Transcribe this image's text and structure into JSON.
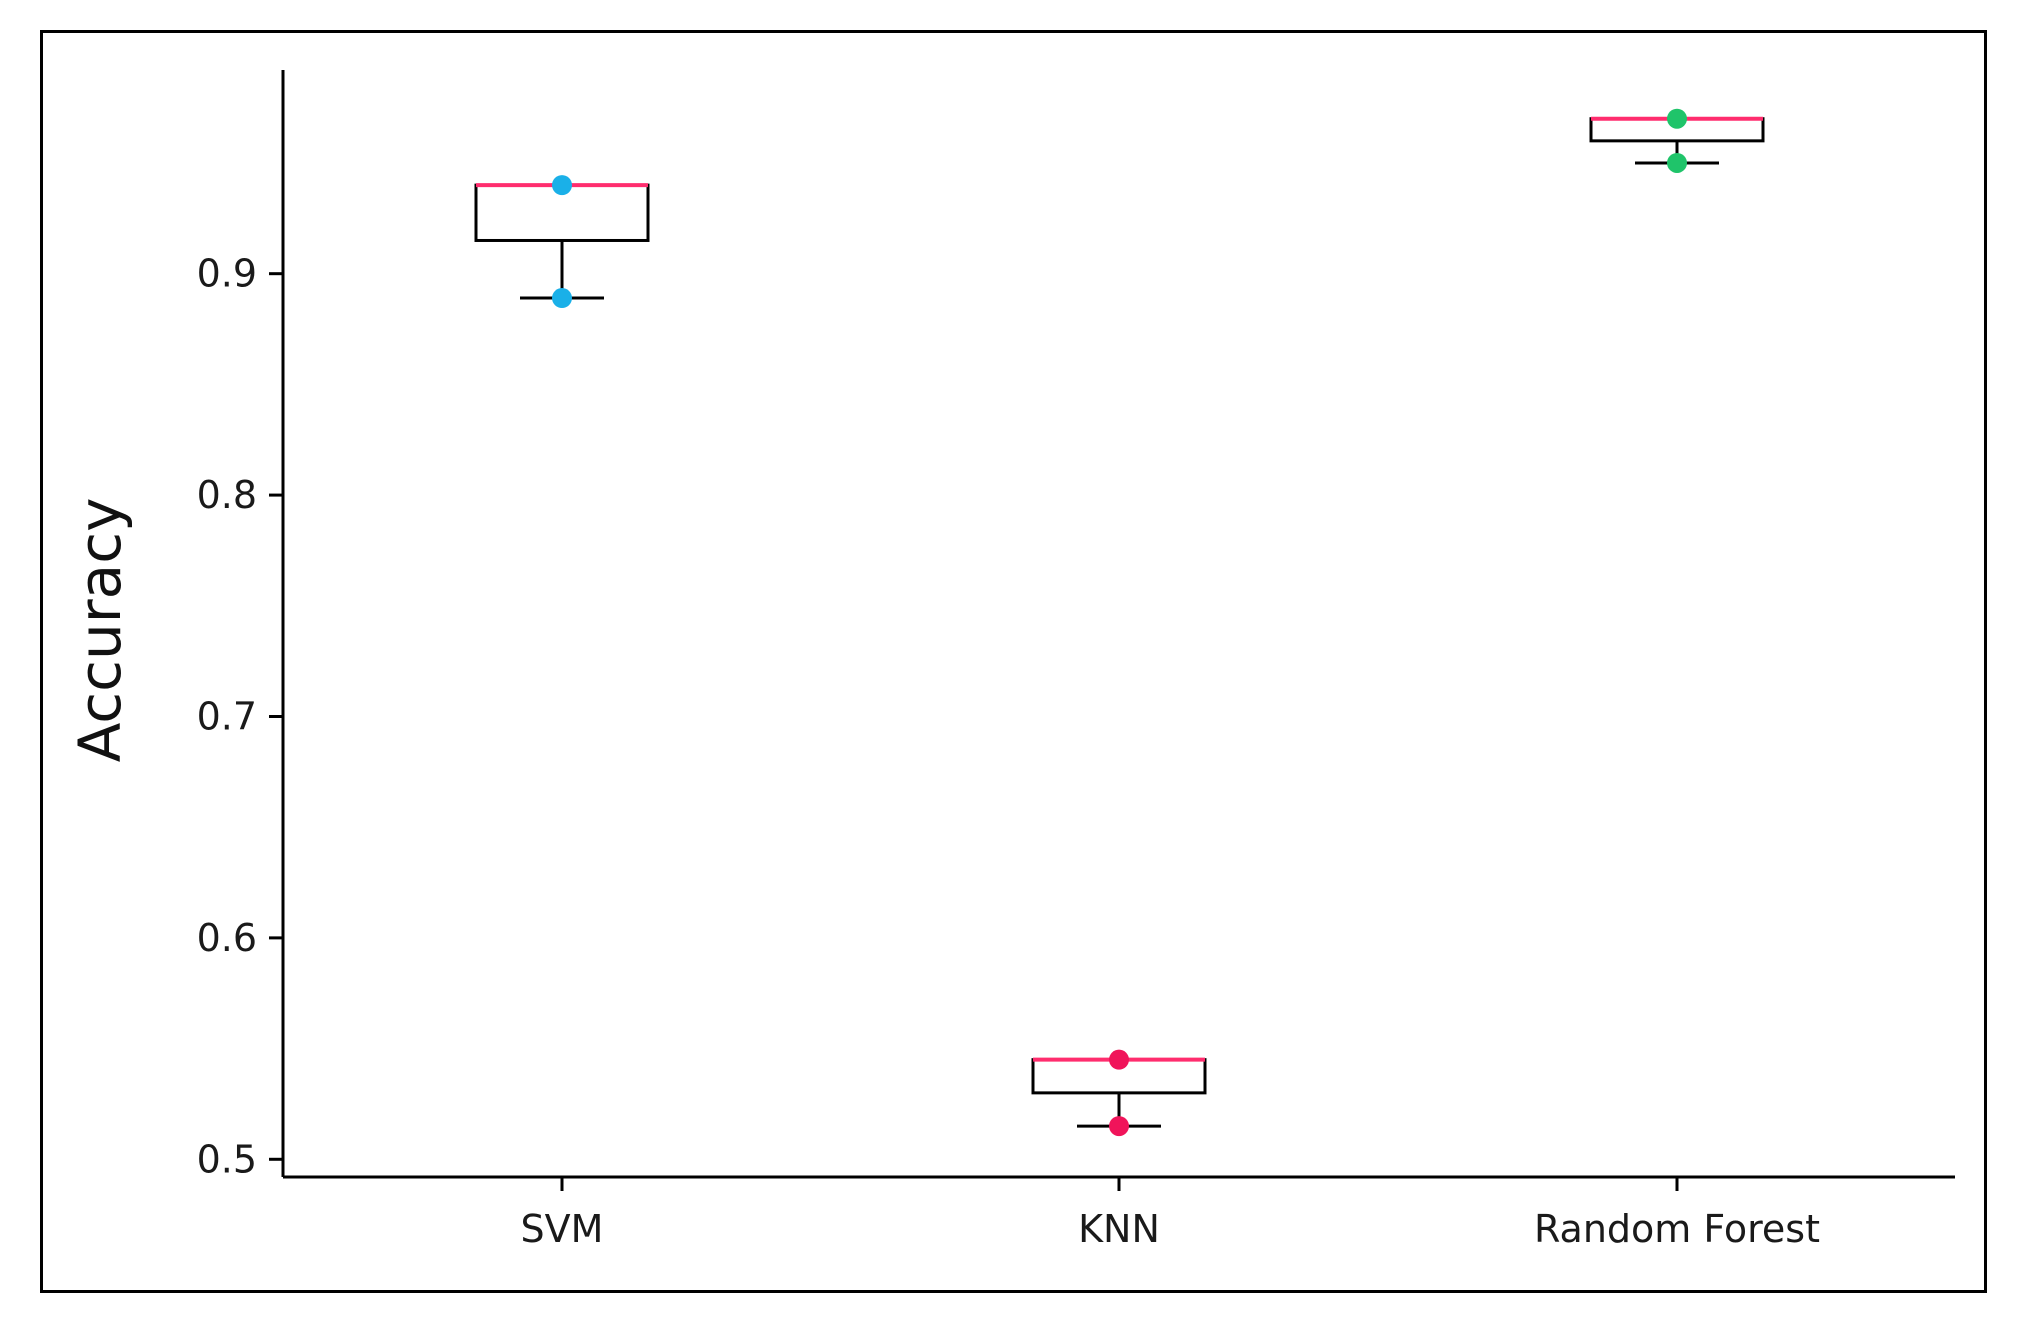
{
  "chart_data": {
    "type": "box",
    "title": "",
    "xlabel": "",
    "ylabel": "Accuracy",
    "categories": [
      "SVM",
      "KNN",
      "Random Forest"
    ],
    "yticks": [
      "0.5",
      "0.6",
      "0.7",
      "0.8",
      "0.9"
    ],
    "ylim": [
      0.492,
      0.992
    ],
    "grid": false,
    "boxes": [
      {
        "category": "SVM",
        "whisker_low": 0.889,
        "q1": 0.915,
        "median": 0.94,
        "q3": 0.94,
        "whisker_high": 0.94,
        "points": [
          0.94,
          0.889
        ],
        "point_color": "#1ab0e8"
      },
      {
        "category": "KNN",
        "whisker_low": 0.515,
        "q1": 0.53,
        "median": 0.545,
        "q3": 0.545,
        "whisker_high": 0.545,
        "points": [
          0.545,
          0.515
        ],
        "point_color": "#f0145a"
      },
      {
        "category": "Random Forest",
        "whisker_low": 0.95,
        "q1": 0.96,
        "median": 0.97,
        "q3": 0.97,
        "whisker_high": 0.97,
        "points": [
          0.97,
          0.95
        ],
        "point_color": "#1fc46a"
      }
    ],
    "colors": {
      "median": "#ff2d6e",
      "box": "#000000",
      "axis": "#000000"
    }
  }
}
